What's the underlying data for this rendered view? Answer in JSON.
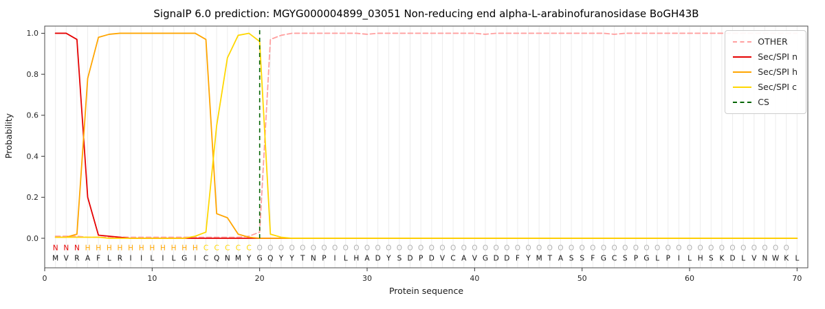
{
  "chart_data": {
    "type": "line",
    "title": "SignalP 6.0 prediction: MGYG000004899_03051 Non-reducing end alpha-L-arabinofuranosidase BoGH43B",
    "xlabel": "Protein sequence",
    "ylabel": "Probability",
    "xlim": [
      0,
      71
    ],
    "ylim": [
      -0.144,
      1.035
    ],
    "grid": "vertical line per residue",
    "legend_position": "upper right",
    "x": [
      1,
      2,
      3,
      4,
      5,
      6,
      7,
      8,
      9,
      10,
      11,
      12,
      13,
      14,
      15,
      16,
      17,
      18,
      19,
      20,
      21,
      22,
      23,
      24,
      25,
      26,
      27,
      28,
      29,
      30,
      31,
      32,
      33,
      34,
      35,
      36,
      37,
      38,
      39,
      40,
      41,
      42,
      43,
      44,
      45,
      46,
      47,
      48,
      49,
      50,
      51,
      52,
      53,
      54,
      55,
      56,
      57,
      58,
      59,
      60,
      61,
      62,
      63,
      64,
      65,
      66,
      67,
      68,
      69,
      70
    ],
    "xticks": [
      {
        "label": "0",
        "value": 0
      },
      {
        "label": "10",
        "value": 10
      },
      {
        "label": "20",
        "value": 20
      },
      {
        "label": "30",
        "value": 30
      },
      {
        "label": "40",
        "value": 40
      },
      {
        "label": "50",
        "value": 50
      },
      {
        "label": "60",
        "value": 60
      },
      {
        "label": "70",
        "value": 70
      }
    ],
    "yticks": [
      {
        "label": "0.0",
        "value": 0.0
      },
      {
        "label": "0.2",
        "value": 0.2
      },
      {
        "label": "0.4",
        "value": 0.4
      },
      {
        "label": "0.6",
        "value": 0.6
      },
      {
        "label": "0.8",
        "value": 0.8
      },
      {
        "label": "1.0",
        "value": 1.0
      }
    ],
    "legend": [
      {
        "label": "OTHER",
        "color": "#ff9f9f",
        "dashed": true
      },
      {
        "label": "Sec/SPI n",
        "color": "#e50000",
        "dashed": false
      },
      {
        "label": "Sec/SPI h",
        "color": "#ffa500",
        "dashed": false
      },
      {
        "label": "Sec/SPI c",
        "color": "#ffd700",
        "dashed": false
      },
      {
        "label": "CS",
        "color": "#006400",
        "dashed": true
      }
    ],
    "series": [
      {
        "name": "OTHER",
        "color": "#ff9f9f",
        "dashed": true,
        "values": [
          0.01,
          0.01,
          0.01,
          0.005,
          0.005,
          0.005,
          0.005,
          0.005,
          0.005,
          0.005,
          0.005,
          0.005,
          0.005,
          0.005,
          0.005,
          0.005,
          0.005,
          0.005,
          0.01,
          0.03,
          0.97,
          0.99,
          1,
          1,
          1,
          1,
          1,
          1,
          1,
          0.995,
          1,
          1,
          1,
          1,
          1,
          1,
          1,
          1,
          1,
          1,
          0.995,
          1,
          1,
          1,
          1,
          1,
          1,
          1,
          1,
          1,
          1,
          1,
          0.995,
          1,
          1,
          1,
          1,
          1,
          1,
          1,
          1,
          1,
          1,
          1,
          1,
          1,
          1,
          1,
          1,
          1
        ]
      },
      {
        "name": "Sec/SPI n",
        "color": "#e50000",
        "dashed": false,
        "values": [
          1,
          1,
          0.97,
          0.2,
          0.015,
          0.01,
          0.005,
          0,
          0,
          0,
          0,
          0,
          0,
          0,
          0,
          0,
          0,
          0,
          0,
          0,
          0,
          0,
          0,
          0,
          0,
          0,
          0,
          0,
          0,
          0,
          0,
          0,
          0,
          0,
          0,
          0,
          0,
          0,
          0,
          0,
          0,
          0,
          0,
          0,
          0,
          0,
          0,
          0,
          0,
          0,
          0,
          0,
          0,
          0,
          0,
          0,
          0,
          0,
          0,
          0,
          0,
          0,
          0,
          0,
          0,
          0,
          0,
          0,
          0,
          0
        ]
      },
      {
        "name": "Sec/SPI h",
        "color": "#ffa500",
        "dashed": false,
        "values": [
          0.005,
          0.005,
          0.02,
          0.78,
          0.98,
          0.995,
          1,
          1,
          1,
          1,
          1,
          1,
          1,
          1,
          0.97,
          0.12,
          0.1,
          0.02,
          0.005,
          0,
          0,
          0,
          0,
          0,
          0,
          0,
          0,
          0,
          0,
          0,
          0,
          0,
          0,
          0,
          0,
          0,
          0,
          0,
          0,
          0,
          0,
          0,
          0,
          0,
          0,
          0,
          0,
          0,
          0,
          0,
          0,
          0,
          0,
          0,
          0,
          0,
          0,
          0,
          0,
          0,
          0,
          0,
          0,
          0,
          0,
          0,
          0,
          0,
          0,
          0
        ]
      },
      {
        "name": "Sec/SPI c",
        "color": "#ffd700",
        "dashed": false,
        "values": [
          0.005,
          0.005,
          0.005,
          0.005,
          0.005,
          0,
          0,
          0,
          0,
          0,
          0,
          0,
          0,
          0.01,
          0.03,
          0.55,
          0.88,
          0.99,
          1,
          0.96,
          0.02,
          0.005,
          0,
          0,
          0,
          0,
          0,
          0,
          0,
          0,
          0,
          0,
          0,
          0,
          0,
          0,
          0,
          0,
          0,
          0,
          0,
          0,
          0,
          0,
          0,
          0,
          0,
          0,
          0,
          0,
          0,
          0,
          0,
          0,
          0,
          0,
          0,
          0,
          0,
          0,
          0,
          0,
          0,
          0,
          0,
          0,
          0,
          0,
          0,
          0
        ]
      }
    ],
    "cs": {
      "label": "CS",
      "x": 20,
      "color": "#006400",
      "dashed": true
    },
    "sequence": "MVRAFLRIILILGICQNMYGQYYTNPILHADYSDPDVCAVGDDFYMTASSFGCSPGLPILHSKDLVNWKL",
    "regions": "NNNHHHHHHHHHHHCCCCCOOOOOOOOOOOOOOOOOOOOOOOOOOOOOOOOOOOOOOOOOOOOOOOOOO",
    "region_colors": {
      "N": "#e50000",
      "H": "#ffa500",
      "C": "#ffd700",
      "O": "#b0b0b0"
    },
    "sequence_color": "#111111"
  }
}
